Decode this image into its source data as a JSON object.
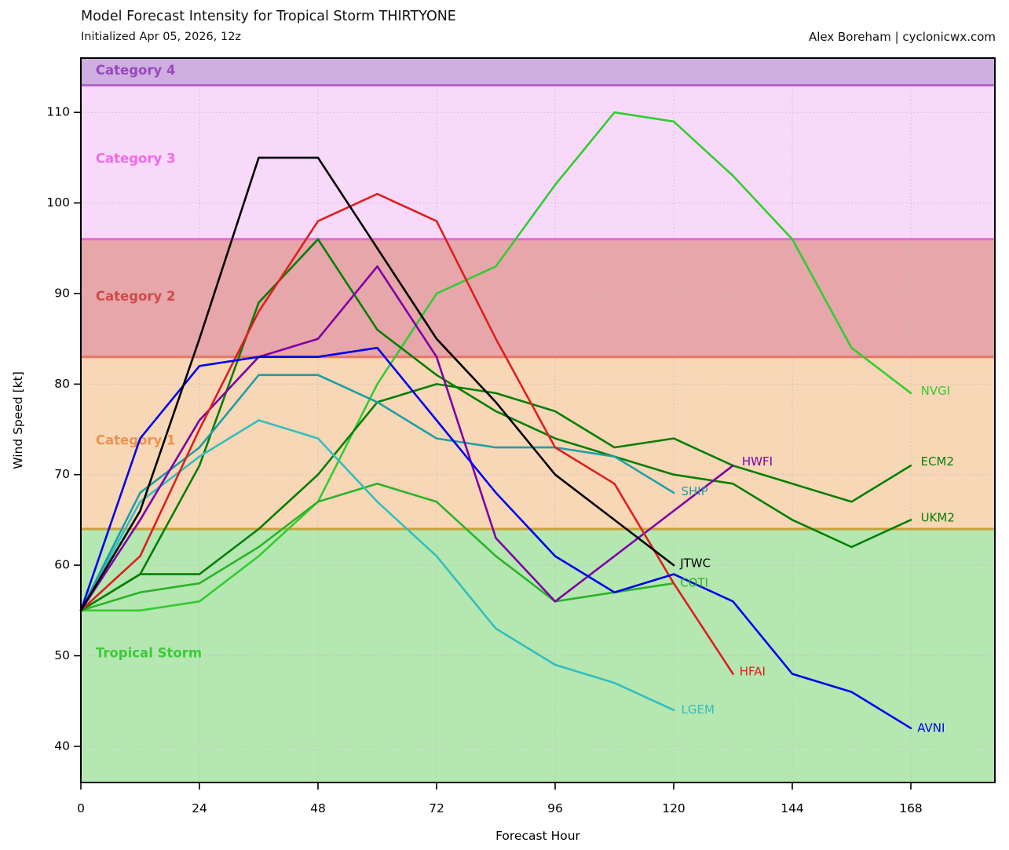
{
  "header": {
    "title": "Model Forecast Intensity for Tropical Storm THIRTYONE",
    "subtitle": "Initialized Apr 05, 2026, 12z",
    "attribution": "Alex Boreham | cyclonicwx.com"
  },
  "chart_data": {
    "type": "line",
    "title": "Model Forecast Intensity for Tropical Storm THIRTYONE",
    "subtitle": "Initialized Apr 05, 2026, 12z",
    "xlabel": "Forecast Hour",
    "ylabel": "Wind Speed [kt]",
    "xlim": [
      0,
      185
    ],
    "ylim": [
      36,
      116
    ],
    "xticks": [
      0,
      24,
      48,
      72,
      96,
      120,
      144,
      168
    ],
    "yticks": [
      40,
      50,
      60,
      70,
      80,
      90,
      100,
      110
    ],
    "grid": "dotted",
    "grid_color": "#c2c2c2",
    "bands": [
      {
        "label": "Tropical Storm",
        "from": 36,
        "to": 64,
        "fill": "#b5e7b0",
        "boundary_color": "#c8a23c",
        "label_color": "#3ccb3c",
        "label_x": 3,
        "label_y": 50.2
      },
      {
        "label": "Category 1",
        "from": 64,
        "to": 83,
        "fill": "#f8d7b6",
        "boundary_color": "#e97568",
        "label_color": "#ea9350",
        "label_x": 3,
        "label_y": 73.7
      },
      {
        "label": "Category 2",
        "from": 83,
        "to": 96,
        "fill": "#e7a6aa",
        "boundary_color": "#e669cd",
        "label_color": "#d04a4a",
        "label_x": 3,
        "label_y": 89.6
      },
      {
        "label": "Category 3",
        "from": 96,
        "to": 113,
        "fill": "#f9d9f9",
        "boundary_color": "#b162d0",
        "label_color": "#f06ae8",
        "label_x": 3,
        "label_y": 104.8
      },
      {
        "label": "Category 4",
        "from": 113,
        "to": 116,
        "fill": "#cfaee0",
        "boundary_color": null,
        "label_color": "#9849bd",
        "label_x": 3,
        "label_y": 114.55
      }
    ],
    "series": [
      {
        "name": "NVGI",
        "color": "#32cd32",
        "hours": [
          0,
          12,
          24,
          36,
          48,
          60,
          72,
          84,
          96,
          108,
          120,
          132,
          144,
          156,
          168
        ],
        "values": [
          55,
          55,
          56,
          61,
          67,
          80,
          90,
          93,
          102,
          110,
          109,
          103,
          96,
          84,
          79
        ],
        "label": {
          "x": 170.0,
          "y": 79.2
        }
      },
      {
        "name": "COTI",
        "color": "#2bb32b",
        "hours": [
          0,
          12,
          24,
          36,
          48,
          60,
          72,
          84,
          96,
          108,
          120
        ],
        "values": [
          55,
          57,
          58,
          62,
          67,
          69,
          67,
          61,
          56,
          57,
          58
        ],
        "label": {
          "x": 121.3,
          "y": 58.0
        }
      },
      {
        "name": "ECM2",
        "color": "#057f05",
        "hours": [
          0,
          12,
          24,
          36,
          48,
          60,
          72,
          84,
          96,
          108,
          120,
          132,
          144,
          156,
          168
        ],
        "values": [
          55,
          59,
          59,
          64,
          70,
          78,
          80,
          79,
          77,
          73,
          74,
          71,
          69,
          67,
          71
        ],
        "label": {
          "x": 170.0,
          "y": 71.4
        }
      },
      {
        "name": "UKM2",
        "color": "#057f05",
        "hours": [
          0,
          12,
          24,
          36,
          48,
          60,
          72,
          84,
          96,
          108,
          120,
          132,
          144,
          156,
          168
        ],
        "values": [
          55,
          59,
          71,
          89,
          96,
          86,
          81,
          77,
          74,
          72,
          70,
          69,
          65,
          62,
          65
        ],
        "label": {
          "x": 170.0,
          "y": 65.2
        }
      },
      {
        "name": "LGEM",
        "color": "#34bebe",
        "hours": [
          0,
          12,
          24,
          36,
          48,
          60,
          72,
          84,
          96,
          108,
          120
        ],
        "values": [
          55,
          67,
          72,
          76,
          74,
          67,
          61,
          53,
          49,
          47,
          44
        ],
        "label": {
          "x": 121.5,
          "y": 44.0
        }
      },
      {
        "name": "SHIP",
        "color": "#1e9ea4",
        "hours": [
          0,
          12,
          24,
          36,
          48,
          60,
          72,
          84,
          96,
          108,
          120
        ],
        "values": [
          55,
          68,
          73,
          81,
          81,
          78,
          74,
          73,
          73,
          72,
          68
        ],
        "label": {
          "x": 121.5,
          "y": 68.1
        }
      },
      {
        "name": "HWFI",
        "color": "#7e00a8",
        "hours": [
          0,
          12,
          24,
          36,
          48,
          60,
          72,
          84,
          96,
          108,
          120,
          132
        ],
        "values": [
          55,
          65,
          76,
          83,
          85,
          93,
          83,
          63,
          56,
          61,
          66,
          71
        ],
        "label": {
          "x": 133.8,
          "y": 71.4
        }
      },
      {
        "name": "HFAI",
        "color": "#dc2020",
        "hours": [
          0,
          12,
          24,
          36,
          48,
          60,
          72,
          84,
          96,
          108,
          120,
          132
        ],
        "values": [
          55,
          61,
          75,
          88,
          98,
          101,
          98,
          85,
          73,
          69,
          58,
          48
        ],
        "label": {
          "x": 133.3,
          "y": 48.2
        }
      },
      {
        "name": "AVNI",
        "color": "#0202ee",
        "hours": [
          0,
          12,
          24,
          36,
          48,
          60,
          72,
          84,
          96,
          108,
          120,
          132,
          144,
          156,
          168
        ],
        "values": [
          55,
          74,
          82,
          83,
          83,
          84,
          76,
          68,
          61,
          57,
          59,
          56,
          48,
          46,
          42
        ],
        "label": {
          "x": 169.3,
          "y": 42.0
        }
      },
      {
        "name": "JTWC",
        "color": "#000000",
        "hours": [
          0,
          12,
          24,
          36,
          48,
          60,
          72,
          84,
          96,
          108,
          120
        ],
        "values": [
          55,
          66,
          85,
          105,
          105,
          95,
          85,
          78,
          70,
          65,
          60
        ],
        "label": {
          "x": 121.3,
          "y": 60.2
        }
      }
    ]
  }
}
